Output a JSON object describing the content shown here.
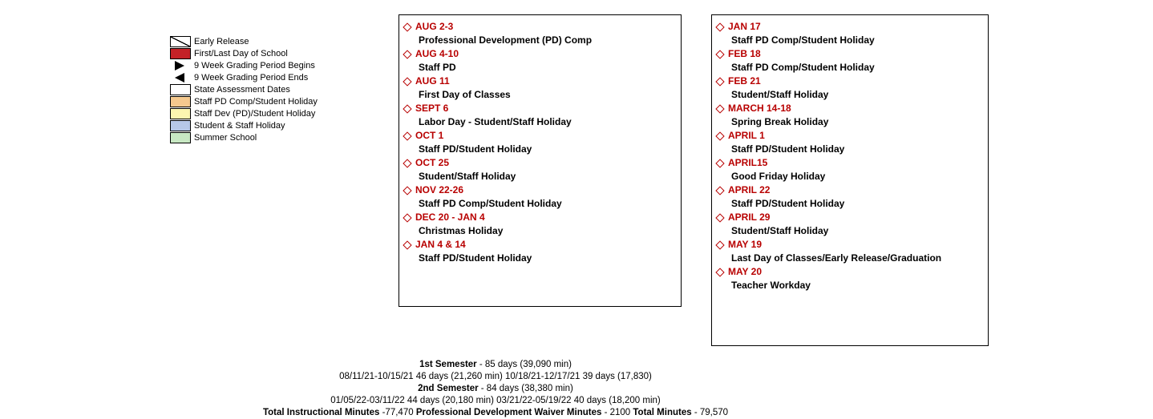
{
  "legend": {
    "items": [
      {
        "type": "diag",
        "label": "Early Release"
      },
      {
        "type": "solid",
        "color": "#c42127",
        "label": "First/Last Day of School"
      },
      {
        "type": "tri-right",
        "label": "9 Week Grading Period Begins"
      },
      {
        "type": "tri-left",
        "label": "9 Week Grading Period Ends"
      },
      {
        "type": "solid",
        "color": "#ffffff",
        "label": "State Assessment Dates"
      },
      {
        "type": "solid",
        "color": "#f5c98e",
        "label": "Staff PD Comp/Student Holiday"
      },
      {
        "type": "solid",
        "color": "#fcf6b0",
        "label": "Staff Dev (PD)/Student Holiday"
      },
      {
        "type": "solid",
        "color": "#b7c8e8",
        "label": "Student & Staff Holiday"
      },
      {
        "type": "solid",
        "color": "#c8e8c3",
        "label": "Summer School"
      }
    ]
  },
  "colors": {
    "event_date": "#b80000",
    "legend_font_size": 11,
    "event_font_size": 12,
    "footer_font_size": 11.5
  },
  "events_left": [
    {
      "date": "AUG 2-3",
      "desc": "Professional Development (PD) Comp"
    },
    {
      "date": "AUG 4-10",
      "desc": "Staff PD"
    },
    {
      "date": "AUG 11",
      "desc": "First Day of Classes"
    },
    {
      "date": "SEPT 6",
      "desc": "Labor Day - Student/Staff Holiday"
    },
    {
      "date": "OCT 1",
      "desc": "Staff PD/Student Holiday"
    },
    {
      "date": "OCT 25",
      "desc": "Student/Staff Holiday"
    },
    {
      "date": "NOV 22-26",
      "desc": "Staff PD Comp/Student Holiday"
    },
    {
      "date": "DEC 20 - JAN 4",
      "desc": "Christmas Holiday"
    },
    {
      "date": "JAN 4 & 14",
      "desc": "Staff PD/Student Holiday"
    }
  ],
  "events_right": [
    {
      "date": "JAN 17",
      "desc": "Staff PD Comp/Student Holiday"
    },
    {
      "date": "FEB 18",
      "desc": "Staff PD Comp/Student Holiday"
    },
    {
      "date": "FEB 21",
      "desc": "Student/Staff Holiday"
    },
    {
      "date": "MARCH 14-18",
      "desc": "Spring Break Holiday"
    },
    {
      "date": "APRIL 1",
      "desc": "Staff PD/Student Holiday"
    },
    {
      "date": "APRIL15",
      "desc": "Good Friday Holiday"
    },
    {
      "date": "APRIL 22",
      "desc": "Staff PD/Student Holiday"
    },
    {
      "date": "APRIL 29",
      "desc": "Student/Staff Holiday"
    },
    {
      "date": "MAY 19",
      "desc": "Last Day of Classes/Early Release/Graduation"
    },
    {
      "date": "MAY 20",
      "desc": "Teacher Workday"
    }
  ],
  "footer": {
    "sem1_label": "1st Semester",
    "sem1_rest": " - 85 days (39,090 min)",
    "line2": "08/11/21-10/15/21 46 days (21,260 min)   10/18/21-12/17/21 39 days (17,830)",
    "sem2_label": "2nd Semester",
    "sem2_rest": " - 84 days (38,380 min)",
    "line4": "01/05/22-03/11/22 44 days (20,180 min)   03/21/22-05/19/22 40 days (18,200 min)",
    "tim_label": "Total Instructional Minutes",
    "tim_rest": " -77,470    ",
    "pdw_label": "Professional Development Waiver Minutes",
    "pdw_rest": " - 2100     ",
    "tm_label": "Total Minutes",
    "tm_rest": " - 79,570"
  }
}
